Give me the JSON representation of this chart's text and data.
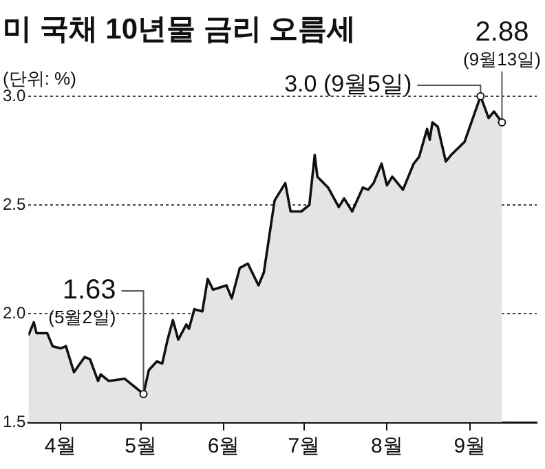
{
  "chart_data": {
    "type": "area",
    "title": "미 국채 10년물 금리 오름세",
    "ylabel": "(단위: %)",
    "x": [
      "--03-20",
      "--03-22",
      "--03-23",
      "--03-27",
      "--03-29",
      "--04-01",
      "--04-03",
      "--04-06",
      "--04-10",
      "--04-12",
      "--04-15",
      "--04-16",
      "--04-19",
      "--04-25",
      "--05-02",
      "--05-04",
      "--05-07",
      "--05-09",
      "--05-11",
      "--05-13",
      "--05-15",
      "--05-18",
      "--05-19",
      "--05-21",
      "--05-24",
      "--05-26",
      "--05-28",
      "--06-02",
      "--06-04",
      "--06-07",
      "--06-10",
      "--06-14",
      "--06-16",
      "--06-20",
      "--06-24",
      "--06-26",
      "--06-30",
      "--07-03",
      "--07-05",
      "--07-06",
      "--07-10",
      "--07-14",
      "--07-16",
      "--07-19",
      "--07-23",
      "--07-25",
      "--07-27",
      "--07-30",
      "--08-01",
      "--08-03",
      "--08-07",
      "--08-11",
      "--08-13",
      "--08-16",
      "--08-17",
      "--08-18",
      "--08-20",
      "--08-23",
      "--08-25",
      "--08-30",
      "--09-05",
      "--09-08",
      "--09-10",
      "--09-13"
    ],
    "series": [
      {
        "color": "#111111",
        "values": [
          1.9,
          1.96,
          1.91,
          1.91,
          1.85,
          1.84,
          1.85,
          1.73,
          1.8,
          1.79,
          1.69,
          1.72,
          1.69,
          1.7,
          1.63,
          1.74,
          1.78,
          1.77,
          1.88,
          1.97,
          1.88,
          1.95,
          1.93,
          2.02,
          2.01,
          2.16,
          2.11,
          2.13,
          2.07,
          2.21,
          2.23,
          2.13,
          2.19,
          2.52,
          2.6,
          2.47,
          2.47,
          2.5,
          2.73,
          2.63,
          2.58,
          2.49,
          2.53,
          2.47,
          2.58,
          2.57,
          2.6,
          2.69,
          2.59,
          2.63,
          2.57,
          2.69,
          2.72,
          2.85,
          2.8,
          2.88,
          2.86,
          2.7,
          2.73,
          2.79,
          3.0,
          2.9,
          2.93,
          2.88
        ]
      }
    ],
    "xlim": [
      "--03-20",
      "--09-26"
    ],
    "xticks": [
      {
        "value": "--04-01",
        "label": "4월"
      },
      {
        "value": "--05-01",
        "label": "5월"
      },
      {
        "value": "--06-01",
        "label": "6월"
      },
      {
        "value": "--07-01",
        "label": "7월"
      },
      {
        "value": "--08-01",
        "label": "8월"
      },
      {
        "value": "--09-01",
        "label": "9월"
      }
    ],
    "ylim": [
      1.5,
      3.0
    ],
    "yticks": [
      1.5,
      {
        "value": 2,
        "label": "2.0"
      },
      2.5,
      {
        "value": 3,
        "label": "3.0"
      }
    ],
    "grid": "y",
    "legend": false,
    "marker": "none",
    "line_style": "solid",
    "annotations": [
      {
        "text": "1.63\n(5월2일)",
        "x": "--05-02",
        "y": 1.63
      },
      {
        "text": "3.0 (9월5일)",
        "x": "--09-05",
        "y": 3.0
      },
      {
        "text": "2.88\n(9월13일)",
        "x": "--09-13",
        "y": 2.88
      }
    ]
  }
}
